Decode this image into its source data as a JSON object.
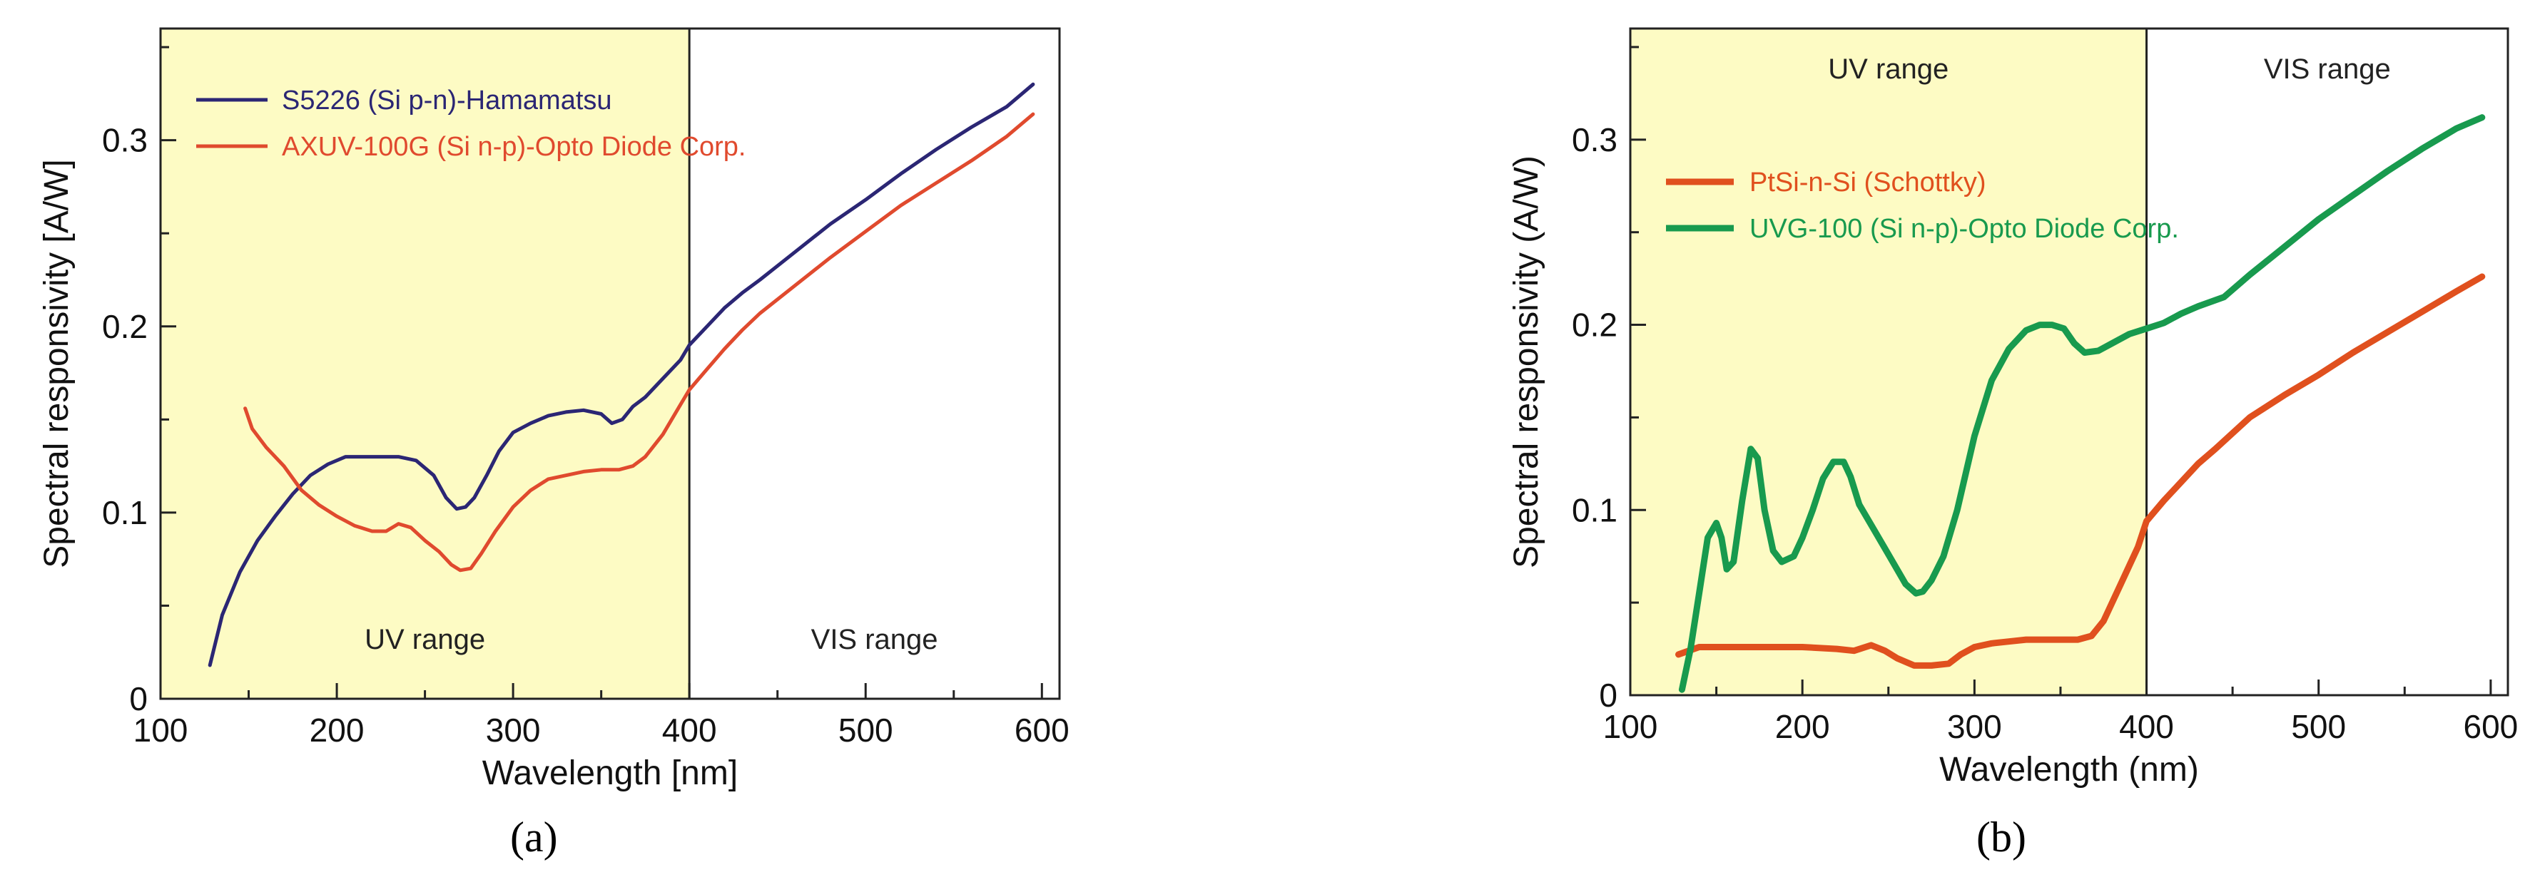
{
  "colors": {
    "uv_fill": "#fdfbc4",
    "axis": "#222222",
    "navy": "#2b2674",
    "red_a": "#e04a2e",
    "red_b": "#e0501e",
    "green": "#189a4e"
  },
  "chart_data": [
    {
      "type": "line",
      "panel_label": "a",
      "xlabel": "Wavelength [nm]",
      "ylabel": "Spectral responsivity [A/W]",
      "xlim": [
        100,
        610
      ],
      "ylim": [
        0,
        0.36
      ],
      "x_ticks": [
        100,
        200,
        300,
        400,
        500,
        600
      ],
      "x_tick_labels": [
        "100",
        "200",
        "300",
        "400",
        "500",
        "600"
      ],
      "y_ticks": [
        0,
        0.1,
        0.2,
        0.3
      ],
      "y_tick_labels": [
        "0",
        "0.1",
        "0.2",
        "0.3"
      ],
      "legend_position": "top-left",
      "regions": [
        {
          "label": "UV range",
          "from": 100,
          "to": 400,
          "shaded": true
        },
        {
          "label": "VIS range",
          "from": 400,
          "to": 610,
          "shaded": false
        }
      ],
      "series": [
        {
          "name": "S5226 (Si p-n)-Hamamatsu",
          "color": "#2b2674",
          "x": [
            128,
            135,
            145,
            155,
            165,
            175,
            185,
            195,
            205,
            215,
            225,
            235,
            245,
            255,
            262,
            268,
            273,
            278,
            285,
            292,
            300,
            310,
            320,
            330,
            340,
            350,
            356,
            362,
            368,
            375,
            385,
            395,
            400,
            410,
            420,
            430,
            440,
            460,
            480,
            500,
            520,
            540,
            560,
            580,
            595
          ],
          "y": [
            0.018,
            0.045,
            0.068,
            0.085,
            0.098,
            0.11,
            0.12,
            0.126,
            0.13,
            0.13,
            0.13,
            0.13,
            0.128,
            0.12,
            0.108,
            0.102,
            0.103,
            0.108,
            0.12,
            0.133,
            0.143,
            0.148,
            0.152,
            0.154,
            0.155,
            0.153,
            0.148,
            0.15,
            0.157,
            0.162,
            0.172,
            0.182,
            0.19,
            0.2,
            0.21,
            0.218,
            0.225,
            0.24,
            0.255,
            0.268,
            0.282,
            0.295,
            0.307,
            0.318,
            0.33
          ]
        },
        {
          "name": "AXUV-100G (Si n-p)-Opto Diode Corp.",
          "color": "#e04a2e",
          "x": [
            148,
            152,
            160,
            170,
            180,
            190,
            200,
            210,
            220,
            228,
            235,
            242,
            250,
            258,
            265,
            270,
            276,
            282,
            290,
            300,
            310,
            320,
            330,
            340,
            350,
            360,
            368,
            375,
            385,
            395,
            400,
            410,
            420,
            430,
            440,
            460,
            480,
            500,
            520,
            540,
            560,
            580,
            595
          ],
          "y": [
            0.156,
            0.145,
            0.135,
            0.125,
            0.112,
            0.104,
            0.098,
            0.093,
            0.09,
            0.09,
            0.094,
            0.092,
            0.085,
            0.079,
            0.072,
            0.069,
            0.07,
            0.078,
            0.09,
            0.103,
            0.112,
            0.118,
            0.12,
            0.122,
            0.123,
            0.123,
            0.125,
            0.13,
            0.142,
            0.158,
            0.166,
            0.177,
            0.188,
            0.198,
            0.207,
            0.222,
            0.237,
            0.251,
            0.265,
            0.277,
            0.289,
            0.302,
            0.314
          ]
        }
      ]
    },
    {
      "type": "line",
      "panel_label": "b",
      "xlabel": "Wavelength (nm)",
      "ylabel": "Spectral responsivity (A/W)",
      "xlim": [
        100,
        610
      ],
      "ylim": [
        0,
        0.36
      ],
      "x_ticks": [
        100,
        200,
        300,
        400,
        500,
        600
      ],
      "x_tick_labels": [
        "100",
        "200",
        "300",
        "400",
        "500",
        "600"
      ],
      "y_ticks": [
        0,
        0.1,
        0.2,
        0.3
      ],
      "y_tick_labels": [
        "0",
        "0.1",
        "0.2",
        "0.3"
      ],
      "legend_position": "top-left",
      "regions": [
        {
          "label": "UV range",
          "from": 100,
          "to": 400,
          "shaded": true
        },
        {
          "label": "VIS range",
          "from": 400,
          "to": 610,
          "shaded": false
        }
      ],
      "series": [
        {
          "name": "PtSi-n-Si (Schottky)",
          "color": "#e0501e",
          "x": [
            128,
            140,
            160,
            180,
            200,
            220,
            230,
            240,
            248,
            255,
            265,
            275,
            285,
            292,
            300,
            310,
            320,
            330,
            340,
            350,
            360,
            368,
            375,
            385,
            395,
            400,
            410,
            420,
            430,
            440,
            460,
            480,
            500,
            520,
            540,
            560,
            580,
            595
          ],
          "y": [
            0.022,
            0.026,
            0.026,
            0.026,
            0.026,
            0.025,
            0.024,
            0.027,
            0.024,
            0.02,
            0.016,
            0.016,
            0.017,
            0.022,
            0.026,
            0.028,
            0.029,
            0.03,
            0.03,
            0.03,
            0.03,
            0.032,
            0.04,
            0.06,
            0.08,
            0.094,
            0.105,
            0.115,
            0.125,
            0.133,
            0.15,
            0.162,
            0.173,
            0.185,
            0.196,
            0.207,
            0.218,
            0.226
          ]
        },
        {
          "name": "UVG-100 (Si n-p)-Opto Diode Corp.",
          "color": "#189a4e",
          "x": [
            130,
            135,
            140,
            145,
            150,
            153,
            156,
            160,
            165,
            170,
            174,
            178,
            183,
            188,
            195,
            200,
            206,
            212,
            218,
            224,
            228,
            233,
            240,
            250,
            260,
            266,
            270,
            275,
            282,
            290,
            300,
            310,
            320,
            330,
            338,
            345,
            352,
            358,
            364,
            372,
            380,
            390,
            400,
            410,
            420,
            430,
            445,
            460,
            480,
            500,
            520,
            540,
            560,
            580,
            595
          ],
          "y": [
            0.003,
            0.025,
            0.055,
            0.085,
            0.093,
            0.085,
            0.068,
            0.072,
            0.105,
            0.133,
            0.128,
            0.1,
            0.078,
            0.072,
            0.075,
            0.085,
            0.1,
            0.117,
            0.126,
            0.126,
            0.118,
            0.103,
            0.092,
            0.076,
            0.06,
            0.055,
            0.056,
            0.062,
            0.075,
            0.1,
            0.14,
            0.17,
            0.187,
            0.197,
            0.2,
            0.2,
            0.198,
            0.19,
            0.185,
            0.186,
            0.19,
            0.195,
            0.198,
            0.201,
            0.206,
            0.21,
            0.215,
            0.227,
            0.242,
            0.257,
            0.27,
            0.283,
            0.295,
            0.306,
            0.312
          ]
        }
      ]
    }
  ],
  "captions": {
    "a": "(a)",
    "b": "(b)"
  }
}
